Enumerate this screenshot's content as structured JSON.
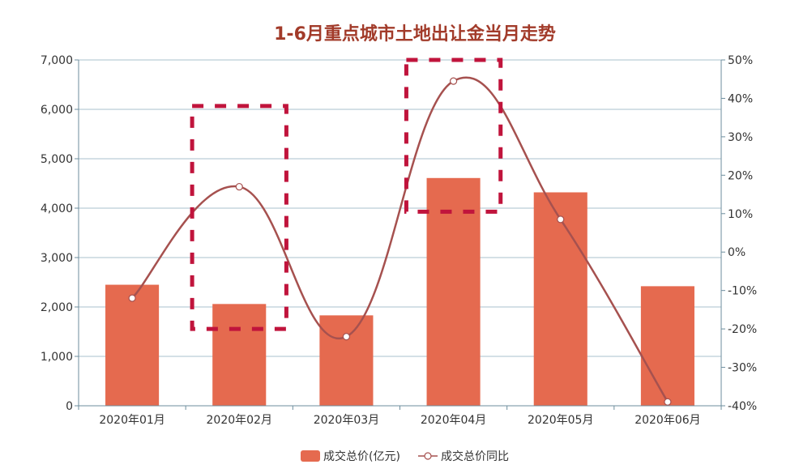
{
  "chart_data": {
    "type": "bar",
    "title": "1-6月重点城市土地出让金当月走势",
    "categories": [
      "2020年01月",
      "2020年02月",
      "2020年03月",
      "2020年04月",
      "2020年05月",
      "2020年06月"
    ],
    "series": [
      {
        "name": "成交总价(亿元)",
        "type": "bar",
        "axis": "left",
        "values": [
          2450,
          2060,
          1830,
          4610,
          4320,
          2420
        ]
      },
      {
        "name": "成交总价同比",
        "type": "line",
        "axis": "right",
        "values": [
          -12,
          17,
          -22,
          44.5,
          8.5,
          -39
        ]
      }
    ],
    "y_left": {
      "ylim": [
        0,
        7000
      ],
      "ticks": [
        "0",
        "1,000",
        "2,000",
        "3,000",
        "4,000",
        "5,000",
        "6,000",
        "7,000"
      ]
    },
    "y_right": {
      "ylim": [
        -40,
        50
      ],
      "ticks": [
        "-40%",
        "-30%",
        "-20%",
        "-10%",
        "0%",
        "10%",
        "20%",
        "30%",
        "40%",
        "50%"
      ]
    },
    "grid": true,
    "legend": "bottom-center",
    "annotations": [
      "2020年02月",
      "2020年04月"
    ],
    "colors": {
      "bar": "#e56a4f",
      "line": "#a6514f",
      "title": "#a23b2a",
      "highlight": "#c0143c",
      "axis": "#6e8e9e",
      "grid": "#a9c2cc"
    }
  }
}
